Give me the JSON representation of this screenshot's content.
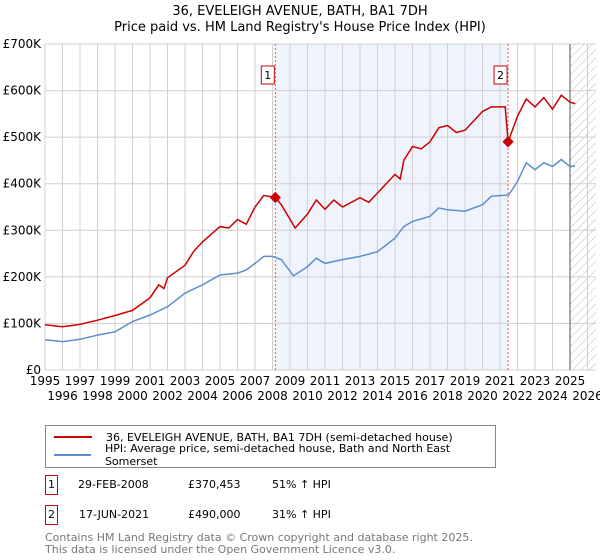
{
  "title": "36, EVELEIGH AVENUE, BATH, BA1 7DH",
  "subtitle": "Price paid vs. HM Land Registry's House Price Index (HPI)",
  "chart_data": {
    "type": "line",
    "xlim": [
      1995,
      2026
    ],
    "ylim": [
      0,
      700000
    ],
    "yticks": [
      {
        "v": 0,
        "label": "£0"
      },
      {
        "v": 100000,
        "label": "£100K"
      },
      {
        "v": 200000,
        "label": "£200K"
      },
      {
        "v": 300000,
        "label": "£300K"
      },
      {
        "v": 400000,
        "label": "£400K"
      },
      {
        "v": 500000,
        "label": "£500K"
      },
      {
        "v": 600000,
        "label": "£600K"
      },
      {
        "v": 700000,
        "label": "£700K"
      }
    ],
    "xticks": [
      "1995",
      "1996",
      "1997",
      "1998",
      "1999",
      "2000",
      "2001",
      "2002",
      "2003",
      "2004",
      "2005",
      "2006",
      "2007",
      "2008",
      "2009",
      "2010",
      "2011",
      "2012",
      "2013",
      "2014",
      "2015",
      "2016",
      "2017",
      "2018",
      "2019",
      "2020",
      "2021",
      "2022",
      "2023",
      "2024",
      "2025",
      "2026"
    ],
    "series": [
      {
        "name": "36, EVELEIGH AVENUE, BATH, BA1 7DH (semi-detached house)",
        "color": "#cc0000",
        "x": [
          1995,
          1996,
          1997,
          1998,
          1999,
          2000,
          2001,
          2001.5,
          2001.8,
          2002,
          2003,
          2003.5,
          2004,
          2005,
          2005.5,
          2006,
          2006.5,
          2007,
          2007.5,
          2008.16,
          2008.5,
          2009.3,
          2010,
          2010.5,
          2011,
          2011.5,
          2012,
          2013,
          2013.5,
          2014,
          2015,
          2015.3,
          2015.5,
          2016,
          2016.5,
          2017,
          2017.5,
          2018,
          2018.5,
          2019,
          2020,
          2020.5,
          2021.3,
          2021.46,
          2022,
          2022.5,
          2023,
          2023.5,
          2024,
          2024.5,
          2025,
          2025.3
        ],
        "y": [
          97000,
          93000,
          98000,
          107000,
          117000,
          128000,
          155000,
          183000,
          175000,
          198000,
          225000,
          255000,
          275000,
          308000,
          305000,
          323000,
          313000,
          350000,
          375000,
          370453,
          355000,
          305000,
          335000,
          365000,
          345000,
          365000,
          350000,
          370000,
          360000,
          380000,
          420000,
          410000,
          450000,
          480000,
          475000,
          490000,
          520000,
          525000,
          510000,
          515000,
          555000,
          565000,
          565000,
          490000,
          545000,
          582000,
          565000,
          585000,
          560000,
          590000,
          575000,
          572000
        ]
      },
      {
        "name": "HPI: Average price, semi-detached house, Bath and North East Somerset",
        "color": "#5b8fd0",
        "x": [
          1995,
          1996,
          1997,
          1998,
          1999,
          2000,
          2001,
          2002,
          2003,
          2004,
          2005,
          2006,
          2006.5,
          2007,
          2007.5,
          2008,
          2008.5,
          2009.2,
          2010,
          2010.5,
          2011,
          2012,
          2013,
          2014,
          2015,
          2015.5,
          2016,
          2017,
          2017.5,
          2018,
          2019,
          2020,
          2020.5,
          2021.5,
          2022,
          2022.5,
          2023,
          2023.5,
          2024,
          2024.5,
          2025,
          2025.3
        ],
        "y": [
          65000,
          61000,
          66000,
          75000,
          82000,
          104000,
          118000,
          136000,
          165000,
          183000,
          204000,
          208000,
          215000,
          229000,
          244000,
          244000,
          237000,
          202000,
          222000,
          240000,
          229000,
          237000,
          244000,
          254000,
          283000,
          308000,
          319000,
          330000,
          348000,
          344000,
          341000,
          355000,
          373000,
          376000,
          405000,
          445000,
          430000,
          445000,
          437000,
          452000,
          437000,
          438000
        ]
      }
    ],
    "sales": [
      {
        "label": "1",
        "x": 2008.16,
        "y": 370453
      },
      {
        "label": "2",
        "x": 2021.46,
        "y": 490000
      }
    ],
    "shaded_range": [
      2008.16,
      2021.46
    ],
    "forecast_from": 2025
  },
  "table": [
    {
      "num": "1",
      "date": "29-FEB-2008",
      "price": "£370,453",
      "hpi": "51% ↑ HPI"
    },
    {
      "num": "2",
      "date": "17-JUN-2021",
      "price": "£490,000",
      "hpi": "31% ↑ HPI"
    }
  ],
  "footer": [
    "Contains HM Land Registry data © Crown copyright and database right 2025.",
    "This data is licensed under the Open Government Licence v3.0."
  ]
}
